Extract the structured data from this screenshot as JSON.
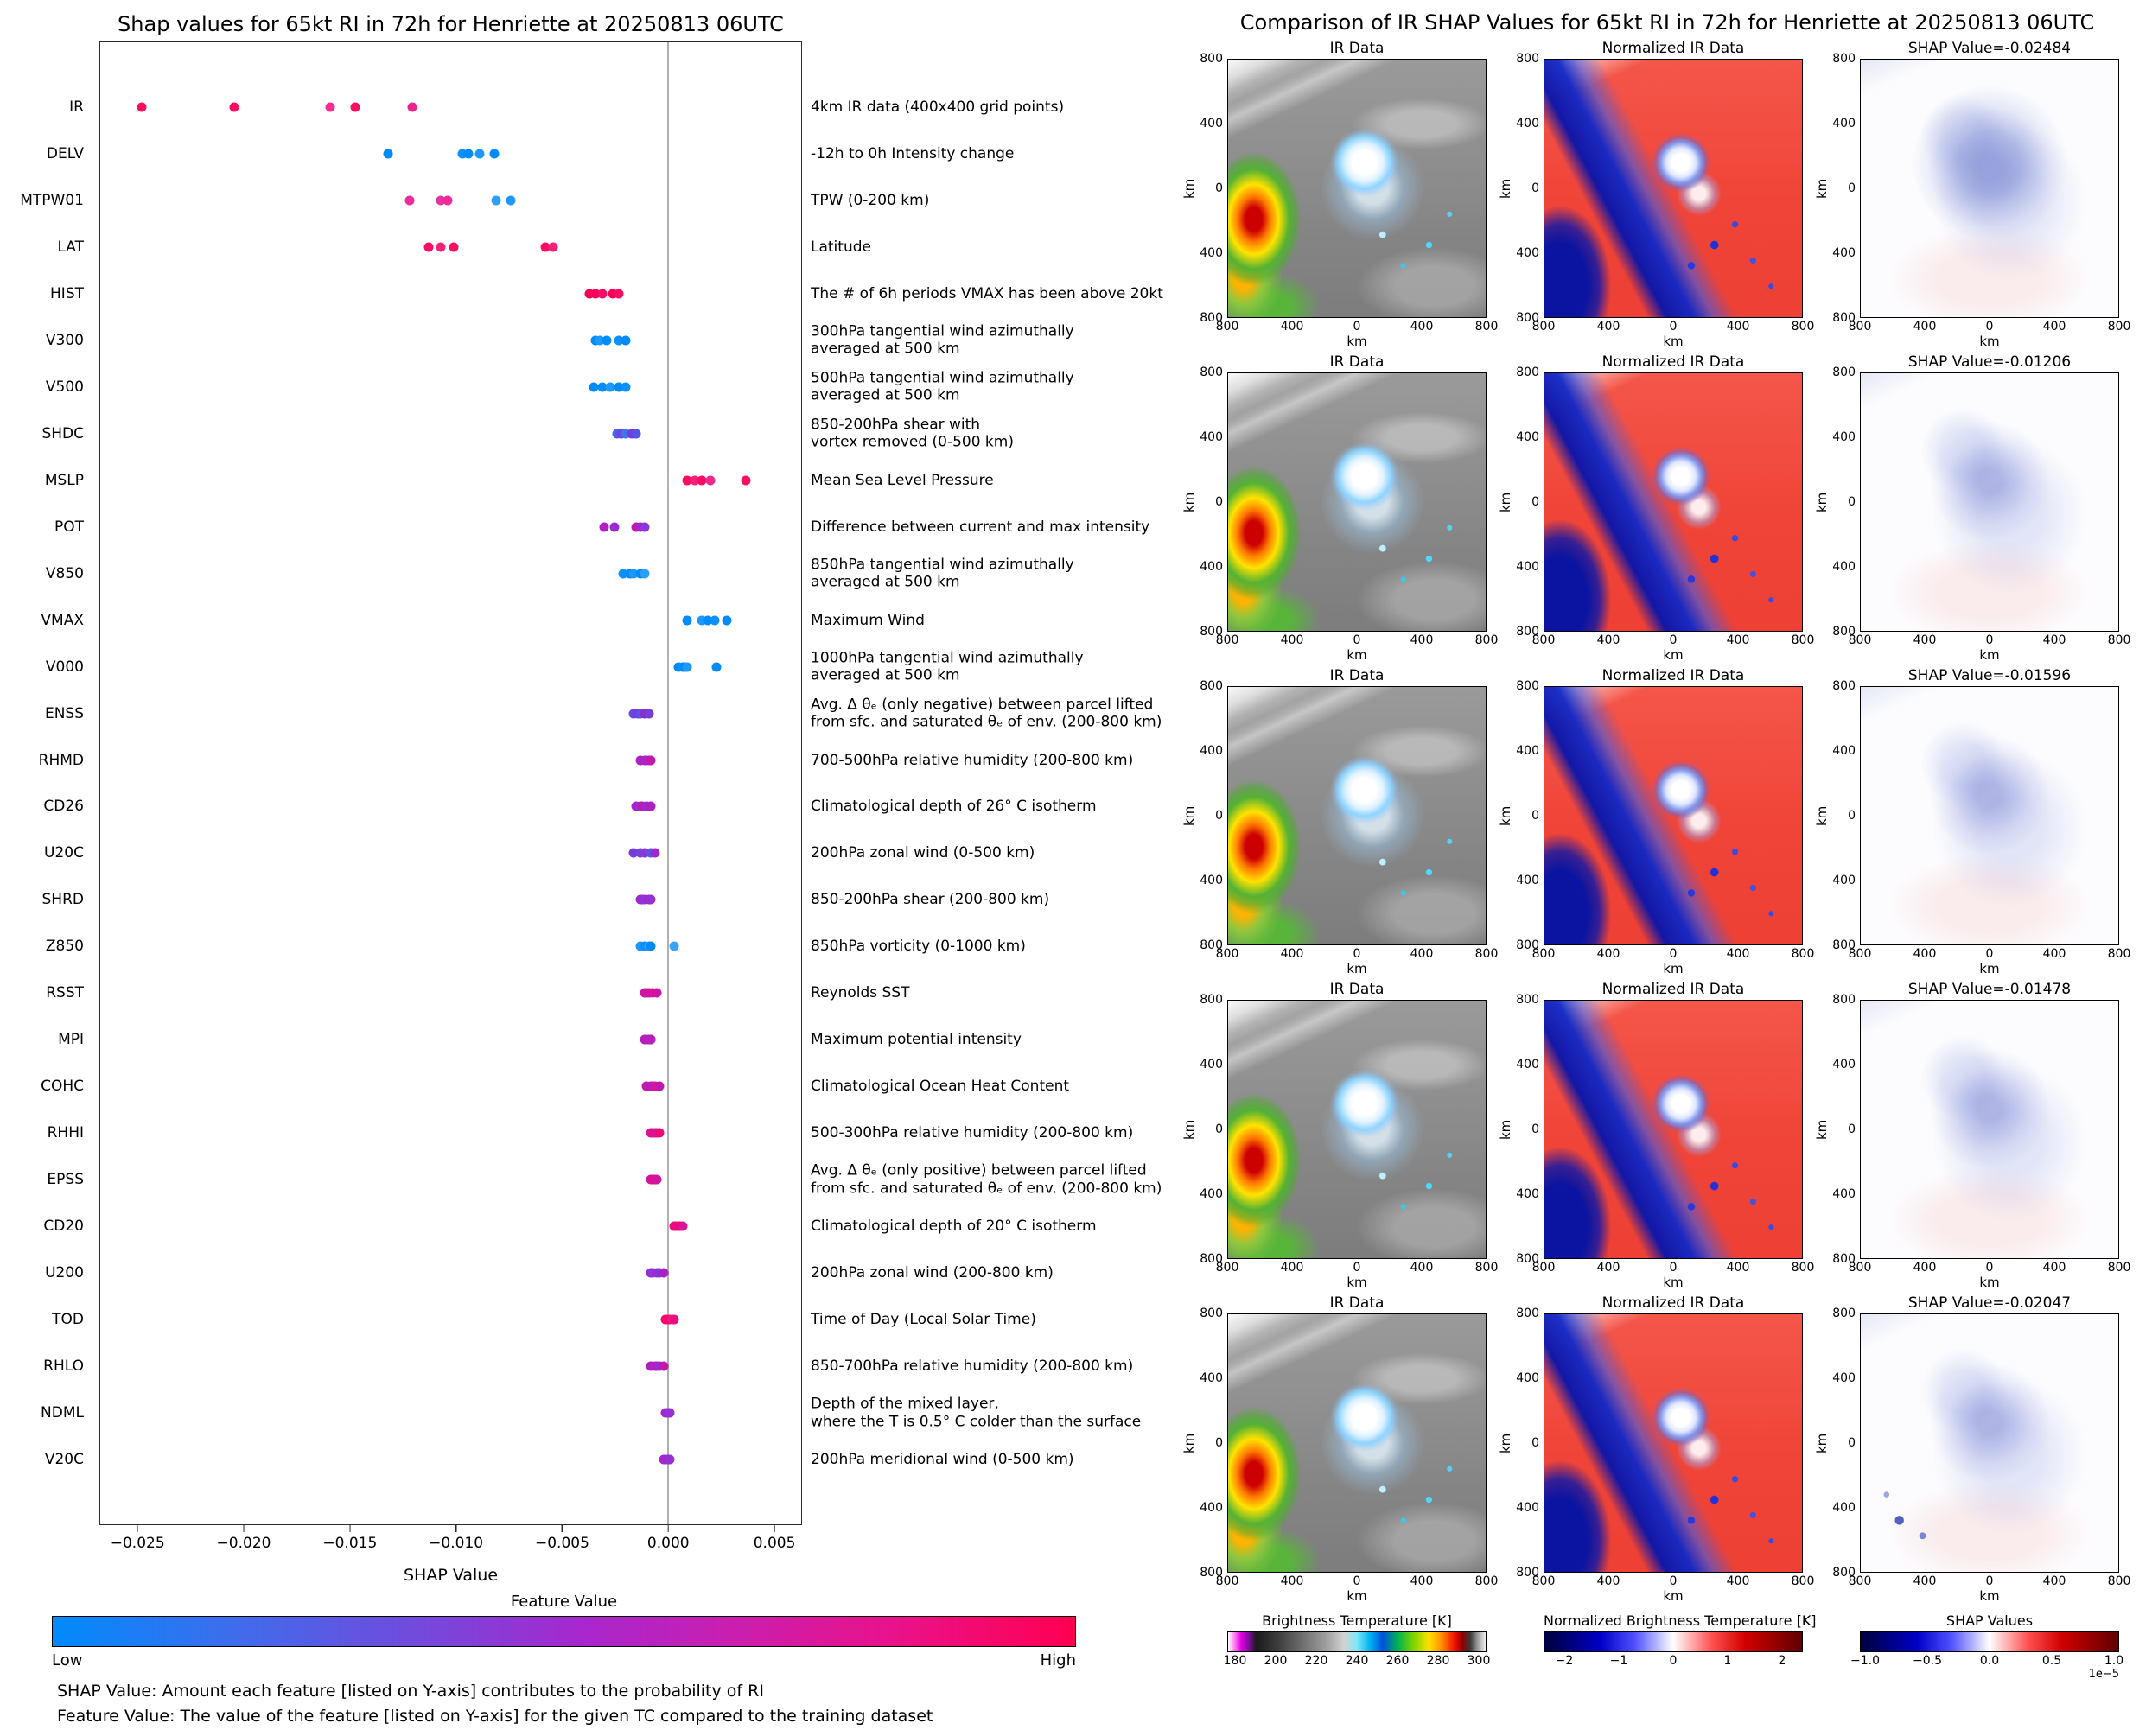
{
  "left_panel": {
    "title": "Shap values for 65kt RI in 72h for Henriette at 20250813 06UTC",
    "xlabel": "SHAP Value",
    "colorbar": {
      "title": "Feature Value",
      "low": "Low",
      "high": "High",
      "low_color": "#008bfb",
      "high_color": "#ff0051"
    },
    "footnote1": "SHAP Value: Amount each feature [listed on Y-axis] contributes to the probability of RI",
    "footnote2": "Feature Value: The value of the feature [listed on Y-axis] for the given TC compared to the training dataset"
  },
  "right_panel": {
    "title": "Comparison of IR SHAP Values for 65kt RI in 72h for Henriette at 20250813 06UTC",
    "axis_label": "km",
    "axis_ticks": [
      "800",
      "400",
      "0",
      "400",
      "800"
    ],
    "rows": [
      {
        "ir_title": "IR Data",
        "norm_title": "Normalized IR Data",
        "shap_title": "SHAP Value=-0.02484"
      },
      {
        "ir_title": "IR Data",
        "norm_title": "Normalized IR Data",
        "shap_title": "SHAP Value=-0.01206"
      },
      {
        "ir_title": "IR Data",
        "norm_title": "Normalized IR Data",
        "shap_title": "SHAP Value=-0.01596"
      },
      {
        "ir_title": "IR Data",
        "norm_title": "Normalized IR Data",
        "shap_title": "SHAP Value=-0.01478"
      },
      {
        "ir_title": "IR Data",
        "norm_title": "Normalized IR Data",
        "shap_title": "SHAP Value=-0.02047"
      }
    ],
    "colorbars": [
      {
        "label": "Brightness Temperature [K]",
        "ticks": [
          "180",
          "200",
          "220",
          "240",
          "260",
          "280",
          "300"
        ],
        "tick_span": [
          3,
          97
        ],
        "multiplier": ""
      },
      {
        "label": "Normalized Brightness Temperature [K]",
        "ticks": [
          "−2",
          "−1",
          "0",
          "1",
          "2"
        ],
        "tick_span": [
          8,
          92
        ],
        "multiplier": ""
      },
      {
        "label": "SHAP Values",
        "ticks": [
          "−1.0",
          "−0.5",
          "0.0",
          "0.5",
          "1.0"
        ],
        "tick_span": [
          2,
          98
        ],
        "multiplier": "1e−5"
      }
    ]
  },
  "chart_data": [
    {
      "type": "scatter",
      "subtype": "shap-beeswarm",
      "title": "Shap values for 65kt RI in 72h for Henriette at 20250813 06UTC",
      "xlabel": "SHAP Value",
      "xlim": [
        -0.0268,
        0.0063
      ],
      "grid": false,
      "zero_line": true,
      "x_ticks": [
        {
          "v": -0.025,
          "label": "−0.025"
        },
        {
          "v": -0.02,
          "label": "−0.020"
        },
        {
          "v": -0.015,
          "label": "−0.015"
        },
        {
          "v": -0.01,
          "label": "−0.010"
        },
        {
          "v": -0.005,
          "label": "−0.005"
        },
        {
          "v": 0.0,
          "label": "0.000"
        },
        {
          "v": 0.005,
          "label": "0.005"
        }
      ],
      "features": [
        {
          "name": "IR",
          "description": "4km IR data (400x400 grid points)",
          "values": [
            -0.02484,
            -0.02047,
            -0.01596,
            -0.01478,
            -0.01206
          ],
          "colors": [
            "#fb0d64",
            "#fb0d64",
            "#f62e92",
            "#fb0d64",
            "#f0238c"
          ]
        },
        {
          "name": "DELV",
          "description": "-12h to 0h Intensity change",
          "values": [
            -0.0132,
            -0.0097,
            -0.0094,
            -0.0089,
            -0.0082
          ],
          "colors": [
            "#008bfb",
            "#0d90fb",
            "#008bfb",
            "#1e98fb",
            "#008bfb"
          ]
        },
        {
          "name": "MTPW01",
          "description": "TPW (0-200 km)",
          "values": [
            -0.0122,
            -0.0107,
            -0.0104,
            -0.0081,
            -0.0074
          ],
          "colors": [
            "#ef2a9a",
            "#e5339f",
            "#ef2a9a",
            "#2f9ffc",
            "#1e98fb"
          ]
        },
        {
          "name": "LAT",
          "description": "Latitude",
          "values": [
            -0.0113,
            -0.0107,
            -0.0101,
            -0.0058,
            -0.0054
          ],
          "colors": [
            "#fb0d64",
            "#f62079",
            "#fb0d64",
            "#fb0d64",
            "#f62079"
          ]
        },
        {
          "name": "HIST",
          "description": "The # of 6h periods VMAX has been above 20kt",
          "values": [
            -0.0037,
            -0.0034,
            -0.0031,
            -0.0026,
            -0.0023
          ],
          "colors": [
            "#f50057",
            "#f50057",
            "#fb0d64",
            "#f50057",
            "#fb0d64"
          ]
        },
        {
          "name": "V300",
          "description": "300hPa tangential wind azimuthally\naveraged at 500 km",
          "values": [
            -0.0034,
            -0.0032,
            -0.0029,
            -0.0023,
            -0.002
          ],
          "colors": [
            "#008bfb",
            "#1e98fb",
            "#008bfb",
            "#0d90fb",
            "#008bfb"
          ]
        },
        {
          "name": "V500",
          "description": "500hPa tangential wind azimuthally\naveraged at 500 km",
          "values": [
            -0.0035,
            -0.0031,
            -0.0027,
            -0.0023,
            -0.002
          ],
          "colors": [
            "#008bfb",
            "#008bfb",
            "#1e98fb",
            "#008bfb",
            "#0d90fb"
          ]
        },
        {
          "name": "SHDC",
          "description": "850-200hPa shear with\nvortex removed (0-500 km)",
          "values": [
            -0.0024,
            -0.0022,
            -0.002,
            -0.0017,
            -0.0015
          ],
          "colors": [
            "#4a62e9",
            "#6b46de",
            "#3c76f0",
            "#7a39d8",
            "#5555e5"
          ]
        },
        {
          "name": "MSLP",
          "description": "Mean Sea Level Pressure",
          "values": [
            0.0009,
            0.0013,
            0.0016,
            0.002,
            0.0037
          ],
          "colors": [
            "#fb0d64",
            "#f6207a",
            "#fb0d64",
            "#ef2a8d",
            "#fb0d64"
          ]
        },
        {
          "name": "POT",
          "description": "Difference between current and max intensity",
          "values": [
            -0.003,
            -0.0025,
            -0.0015,
            -0.0013,
            -0.0011
          ],
          "colors": [
            "#b01fc0",
            "#9c2ad1",
            "#c318ac",
            "#a626cd",
            "#8e35da"
          ]
        },
        {
          "name": "V850",
          "description": "850hPa tangential wind azimuthally\naveraged at 500 km",
          "values": [
            -0.0021,
            -0.0018,
            -0.0016,
            -0.0013,
            -0.0011
          ],
          "colors": [
            "#0d90fb",
            "#008bfb",
            "#1e98fb",
            "#008bfb",
            "#2f9ffc"
          ]
        },
        {
          "name": "VMAX",
          "description": "Maximum Wind",
          "values": [
            0.0009,
            0.0016,
            0.0019,
            0.0022,
            0.0028
          ],
          "colors": [
            "#008bfb",
            "#1e98fb",
            "#008bfb",
            "#0d90fb",
            "#008bfb"
          ]
        },
        {
          "name": "V000",
          "description": "1000hPa tangential wind azimuthally\naveraged at 500 km",
          "values": [
            0.0005,
            0.0007,
            0.0008,
            0.0009,
            0.0023
          ],
          "colors": [
            "#008bfb",
            "#0d90fb",
            "#008bfb",
            "#1e98fb",
            "#008bfb"
          ]
        },
        {
          "name": "ENSS",
          "description": "Avg. Δ θₑ (only negative) between parcel lifted\nfrom sfc. and saturated θₑ of env. (200-800 km)",
          "values": [
            -0.0016,
            -0.0014,
            -0.0013,
            -0.0011,
            -0.0009
          ],
          "colors": [
            "#6b46de",
            "#7a39d8",
            "#5b55e5",
            "#8a2cd0",
            "#7440da"
          ]
        },
        {
          "name": "RHMD",
          "description": "700-500hPa relative humidity (200-800 km)",
          "values": [
            -0.0013,
            -0.0011,
            -0.001,
            -0.0009,
            -0.0008
          ],
          "colors": [
            "#aa22c8",
            "#bf1bb2",
            "#9c2ad1",
            "#b51fbd",
            "#c318ac"
          ]
        },
        {
          "name": "CD26",
          "description": "Climatological depth of 26° C isotherm",
          "values": [
            -0.0015,
            -0.0013,
            -0.0012,
            -0.001,
            -0.0008
          ],
          "colors": [
            "#a626cd",
            "#8e35da",
            "#c318ac",
            "#9c2ad1",
            "#b01fc0"
          ]
        },
        {
          "name": "U20C",
          "description": "200hPa zonal wind (0-500 km)",
          "values": [
            -0.0016,
            -0.0013,
            -0.0011,
            -0.0008,
            -0.0006
          ],
          "colors": [
            "#7a39d8",
            "#6b46de",
            "#8e35da",
            "#5b55e5",
            "#9c2ad1"
          ]
        },
        {
          "name": "SHRD",
          "description": "850-200hPa shear (200-800 km)",
          "values": [
            -0.0013,
            -0.0012,
            -0.0011,
            -0.0009,
            -0.0008
          ],
          "colors": [
            "#9c2ad1",
            "#a626cd",
            "#8e35da",
            "#b01fc0",
            "#9333d4"
          ]
        },
        {
          "name": "Z850",
          "description": "850hPa vorticity (0-1000 km)",
          "values": [
            -0.0013,
            -0.0011,
            -0.0009,
            -0.0008,
            0.0003
          ],
          "colors": [
            "#1e98fb",
            "#0d90fb",
            "#2f9ffc",
            "#008bfb",
            "#3aa4fc"
          ]
        },
        {
          "name": "RSST",
          "description": "Reynolds SST",
          "values": [
            -0.0011,
            -0.001,
            -0.0009,
            -0.0007,
            -0.0005
          ],
          "colors": [
            "#cb16a5",
            "#d8149b",
            "#bf1bb2",
            "#e0118f",
            "#c916a8"
          ]
        },
        {
          "name": "MPI",
          "description": "Maximum potential intensity",
          "values": [
            -0.0011,
            -0.001,
            -0.0009,
            -0.0008,
            -0.0008
          ],
          "colors": [
            "#b01fc0",
            "#bf1bb2",
            "#a626cd",
            "#cb16a5",
            "#b81ebb"
          ]
        },
        {
          "name": "COHC",
          "description": "Climatological Ocean Heat Content",
          "values": [
            -0.001,
            -0.0008,
            -0.0007,
            -0.0006,
            -0.0004
          ],
          "colors": [
            "#bf1bb2",
            "#cb16a5",
            "#b01fc0",
            "#d8149b",
            "#c318ac"
          ]
        },
        {
          "name": "RHHI",
          "description": "500-300hPa relative humidity (200-800 km)",
          "values": [
            -0.0008,
            -0.0007,
            -0.0006,
            -0.0005,
            -0.0004
          ],
          "colors": [
            "#e0118f",
            "#d8149b",
            "#e90c82",
            "#cb16a5",
            "#ef0a77"
          ]
        },
        {
          "name": "EPSS",
          "description": "Avg. Δ θₑ (only positive) between parcel lifted\nfrom sfc. and saturated θₑ of env. (200-800 km)",
          "values": [
            -0.0008,
            -0.0007,
            -0.0007,
            -0.0006,
            -0.0005
          ],
          "colors": [
            "#d8149b",
            "#e0118f",
            "#cb16a5",
            "#e90c82",
            "#d216a0"
          ]
        },
        {
          "name": "CD20",
          "description": "Climatological depth of 20° C isotherm",
          "values": [
            0.0003,
            0.0004,
            0.0005,
            0.0006,
            0.0007
          ],
          "colors": [
            "#e90c82",
            "#ef0a77",
            "#e0118f",
            "#f50768",
            "#db1397"
          ]
        },
        {
          "name": "U200",
          "description": "200hPa zonal wind (200-800 km)",
          "values": [
            -0.0008,
            -0.0007,
            -0.0005,
            -0.0004,
            -0.0002
          ],
          "colors": [
            "#9c2ad1",
            "#8e35da",
            "#a626cd",
            "#7a39d8",
            "#b01fc0"
          ]
        },
        {
          "name": "TOD",
          "description": "Time of Day (Local Solar Time)",
          "values": [
            -0.0001,
            0.0,
            0.0001,
            0.0002,
            0.0003
          ],
          "colors": [
            "#f50768",
            "#fb0d64",
            "#ef0a77",
            "#fa1b72",
            "#e90c82"
          ]
        },
        {
          "name": "RHLO",
          "description": "850-700hPa relative humidity (200-800 km)",
          "values": [
            -0.0008,
            -0.0006,
            -0.0005,
            -0.0004,
            -0.0002
          ],
          "colors": [
            "#b01fc0",
            "#a626cd",
            "#bf1bb2",
            "#9c2ad1",
            "#c318ac"
          ]
        },
        {
          "name": "NDML",
          "description": "Depth of the mixed layer,\nwhere the T is 0.5° C colder than the surface",
          "values": [
            -0.0001,
            0.0,
            0.0001
          ],
          "colors": [
            "#9c2ad1",
            "#a626cd",
            "#9333d4"
          ]
        },
        {
          "name": "V20C",
          "description": "200hPa meridional wind (0-500 km)",
          "values": [
            -0.0002,
            -0.0001,
            0.0,
            0.0001
          ],
          "colors": [
            "#a626cd",
            "#9c2ad1",
            "#b01fc0",
            "#9333d4"
          ]
        }
      ]
    },
    {
      "type": "heatmap",
      "subtype": "ir-shap-map-grid",
      "title": "Comparison of IR SHAP Values for 65kt RI in 72h for Henriette at 20250813 06UTC",
      "columns": [
        "IR Data",
        "Normalized IR Data",
        "SHAP Values"
      ],
      "row_shap_values": [
        -0.02484,
        -0.01206,
        -0.01596,
        -0.01478,
        -0.02047
      ],
      "axis_km_ticks": [
        800,
        400,
        0,
        400,
        800
      ],
      "colorbar_ranges": {
        "brightness_temperature_K": [
          180,
          300
        ],
        "normalized_brightness_temperature_K": [
          -2,
          2
        ],
        "shap_values": [
          -1e-05,
          1e-05
        ]
      }
    }
  ]
}
